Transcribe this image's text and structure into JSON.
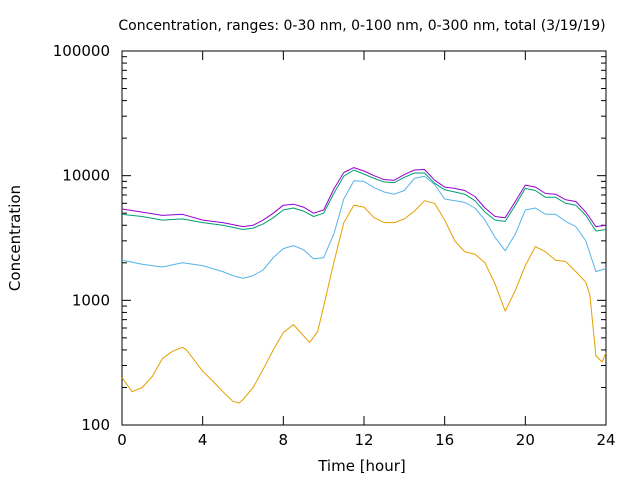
{
  "chart_data": {
    "type": "line",
    "title": "Concentration, ranges: 0-30 nm, 0-100 nm, 0-300 nm, total (3/19/19)",
    "xlabel": "Time [hour]",
    "ylabel": "Concentration",
    "xlim": [
      0,
      24
    ],
    "ylim": [
      100,
      100000
    ],
    "yscale": "log",
    "grid": false,
    "legend": "none",
    "x_ticks": [
      0,
      4,
      8,
      12,
      16,
      20,
      24
    ],
    "x_tick_labels": [
      "0",
      "4",
      "8",
      "12",
      "16",
      "20",
      "24"
    ],
    "y_ticks": [
      100,
      1000,
      10000,
      100000
    ],
    "y_tick_labels": [
      "100",
      "1000",
      "10000",
      "100000"
    ],
    "series": [
      {
        "color": "#e69f00",
        "x": [
          0,
          0.5,
          1,
          1.5,
          2,
          2.5,
          3,
          3.2,
          3.5,
          4,
          4.5,
          5,
          5.5,
          5.8,
          6,
          6.5,
          7,
          7.5,
          8,
          8.5,
          9,
          9.3,
          9.7,
          10,
          10.5,
          11,
          11.5,
          12,
          12.5,
          13,
          13.5,
          14,
          14.5,
          15,
          15.5,
          16,
          16.5,
          17,
          17.5,
          18,
          18.5,
          18.8,
          19,
          19.5,
          20,
          20.5,
          21,
          21.5,
          22,
          22.5,
          23,
          23.2,
          23.5,
          23.8,
          24
        ],
        "values": [
          240,
          185,
          200,
          245,
          340,
          390,
          420,
          400,
          345,
          270,
          225,
          185,
          155,
          150,
          160,
          200,
          280,
          400,
          550,
          640,
          520,
          460,
          560,
          900,
          2000,
          4200,
          5800,
          5600,
          4600,
          4200,
          4200,
          4500,
          5200,
          6300,
          6000,
          4400,
          3000,
          2450,
          2350,
          2000,
          1350,
          1000,
          820,
          1200,
          1900,
          2700,
          2450,
          2100,
          2050,
          1700,
          1400,
          1100,
          360,
          320,
          380
        ]
      },
      {
        "color": "#56b4e9",
        "x": [
          0,
          1,
          2,
          3,
          4,
          5,
          5.5,
          6,
          6.5,
          7,
          7.5,
          8,
          8.5,
          9,
          9.5,
          10,
          10.5,
          11,
          11.5,
          12,
          12.5,
          13,
          13.5,
          14,
          14.5,
          15,
          15.5,
          16,
          16.5,
          17,
          17.5,
          18,
          18.5,
          19,
          19.5,
          20,
          20.5,
          21,
          21.5,
          22,
          22.5,
          23,
          23.5,
          24
        ],
        "values": [
          2100,
          1950,
          1850,
          2000,
          1900,
          1700,
          1580,
          1500,
          1580,
          1750,
          2200,
          2600,
          2750,
          2550,
          2150,
          2200,
          3400,
          6500,
          9100,
          9000,
          8000,
          7400,
          7100,
          7600,
          9500,
          9900,
          8500,
          6500,
          6300,
          6100,
          5500,
          4400,
          3200,
          2500,
          3400,
          5300,
          5500,
          4900,
          4900,
          4300,
          3900,
          3000,
          1700,
          1800
        ]
      },
      {
        "color": "#009e73",
        "x": [
          0,
          1,
          2,
          3,
          4,
          5,
          6,
          6.5,
          7,
          7.5,
          8,
          8.5,
          9,
          9.5,
          10,
          10.5,
          11,
          11.5,
          12,
          12.5,
          13,
          13.5,
          14,
          14.5,
          15,
          15.5,
          16,
          16.5,
          17,
          17.5,
          18,
          18.5,
          19,
          19.5,
          20,
          20.5,
          21,
          21.5,
          22,
          22.5,
          23,
          23.5,
          24
        ],
        "values": [
          4900,
          4700,
          4400,
          4500,
          4200,
          4000,
          3700,
          3800,
          4100,
          4600,
          5300,
          5500,
          5200,
          4700,
          5000,
          7200,
          9900,
          11100,
          10300,
          9500,
          8900,
          8800,
          9700,
          10500,
          10500,
          8700,
          7700,
          7400,
          7100,
          6300,
          5100,
          4400,
          4300,
          5800,
          7900,
          7600,
          6700,
          6700,
          6000,
          5800,
          4800,
          3600,
          3700
        ]
      },
      {
        "color": "#9400d3",
        "x": [
          0,
          1,
          2,
          3,
          4,
          5,
          6,
          6.5,
          7,
          7.5,
          8,
          8.5,
          9,
          9.5,
          10,
          10.5,
          11,
          11.5,
          12,
          12.5,
          13,
          13.5,
          14,
          14.5,
          15,
          15.5,
          16,
          16.5,
          17,
          17.5,
          18,
          18.5,
          19,
          19.5,
          20,
          20.5,
          21,
          21.5,
          22,
          22.5,
          23,
          23.5,
          24
        ],
        "values": [
          5400,
          5100,
          4800,
          4900,
          4400,
          4200,
          3900,
          4000,
          4400,
          5000,
          5800,
          5900,
          5600,
          5000,
          5300,
          7800,
          10600,
          11600,
          10900,
          10000,
          9300,
          9200,
          10200,
          11100,
          11200,
          9200,
          8100,
          7900,
          7600,
          6800,
          5500,
          4700,
          4600,
          6200,
          8400,
          8100,
          7200,
          7100,
          6400,
          6200,
          5100,
          3900,
          4000
        ]
      }
    ]
  }
}
